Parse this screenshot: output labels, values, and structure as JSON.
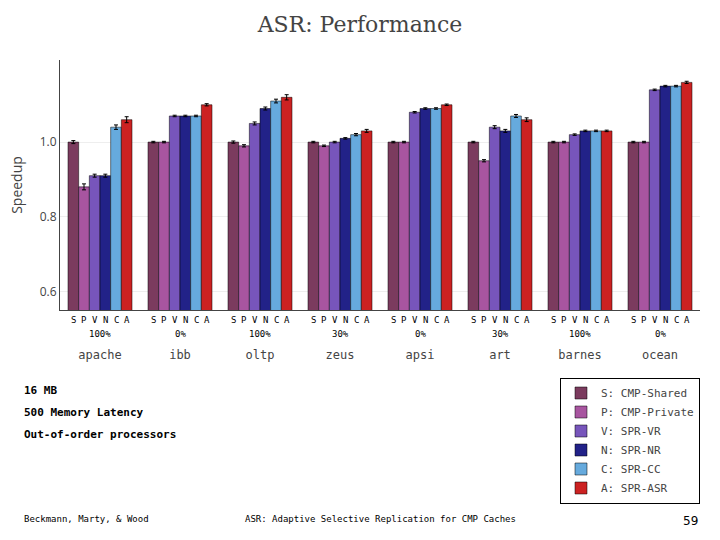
{
  "chart_data": {
    "type": "bar",
    "title": "ASR: Performance",
    "ylabel": "Speedup",
    "categories": [
      "apache",
      "ibb",
      "oltp",
      "zeus",
      "apsi",
      "art",
      "barnes",
      "ocean"
    ],
    "series": [
      {
        "name": "S: CMP-Shared",
        "sub_label": "S",
        "color": "#7B3B5E",
        "values": [
          1.0,
          1.0,
          1.0,
          1.0,
          1.0,
          1.0,
          1.0,
          1.0
        ],
        "errors": [
          0.004,
          0.002,
          0.003,
          0.002,
          0.002,
          0.002,
          0.002,
          0.002
        ]
      },
      {
        "name": "P: CMP-Private",
        "sub_label": "P",
        "color": "#A855A0",
        "values": [
          0.88,
          1.0,
          0.99,
          0.99,
          1.0,
          0.95,
          1.0,
          1.0
        ],
        "errors": [
          0.008,
          0.002,
          0.003,
          0.002,
          0.002,
          0.003,
          0.002,
          0.002
        ]
      },
      {
        "name": "V: SPR-VR",
        "sub_label": "V",
        "color": "#7755BB",
        "values": [
          0.91,
          1.07,
          1.05,
          1.0,
          1.08,
          1.04,
          1.02,
          1.14
        ],
        "errors": [
          0.004,
          0.002,
          0.004,
          0.002,
          0.002,
          0.004,
          0.002,
          0.002
        ]
      },
      {
        "name": "N: SPR-NR",
        "sub_label": "N",
        "color": "#222288",
        "values": [
          0.91,
          1.07,
          1.09,
          1.01,
          1.09,
          1.03,
          1.03,
          1.15
        ],
        "errors": [
          0.004,
          0.002,
          0.004,
          0.002,
          0.002,
          0.004,
          0.002,
          0.002
        ]
      },
      {
        "name": "C: SPR-CC",
        "sub_label": "C",
        "color": "#66AADD",
        "values": [
          1.04,
          1.07,
          1.11,
          1.02,
          1.09,
          1.07,
          1.03,
          1.15
        ],
        "errors": [
          0.006,
          0.002,
          0.005,
          0.003,
          0.002,
          0.004,
          0.002,
          0.002
        ]
      },
      {
        "name": "A: SPR-ASR",
        "sub_label": "A",
        "color": "#CC2222",
        "values": [
          1.06,
          1.1,
          1.12,
          1.03,
          1.1,
          1.06,
          1.03,
          1.16
        ],
        "errors": [
          0.008,
          0.003,
          0.007,
          0.004,
          0.002,
          0.005,
          0.002,
          0.003
        ]
      }
    ],
    "ylim": [
      0.55,
      1.22
    ],
    "yticks": [
      0.6,
      0.8,
      {
        "value": 1.0,
        "label": "1.0"
      }
    ],
    "grid": true,
    "legend": "bottom right",
    "annotations": [
      {
        "text": "100%",
        "category": "apache"
      },
      {
        "text": "0%",
        "category": "ibb"
      },
      {
        "text": "100%",
        "category": "oltp"
      },
      {
        "text": "30%",
        "category": "zeus"
      },
      {
        "text": "0%",
        "category": "apsi"
      },
      {
        "text": "30%",
        "category": "art"
      },
      {
        "text": "100%",
        "category": "barnes"
      },
      {
        "text": "0%",
        "category": "ocean"
      }
    ],
    "notes": [
      "16 MB",
      "500 Memory Latency",
      "Out-of-order processors"
    ],
    "footer": [
      "Beckmann, Marty, & Wood",
      "ASR: Adaptive Selective Replication for CMP Caches",
      "59"
    ]
  }
}
